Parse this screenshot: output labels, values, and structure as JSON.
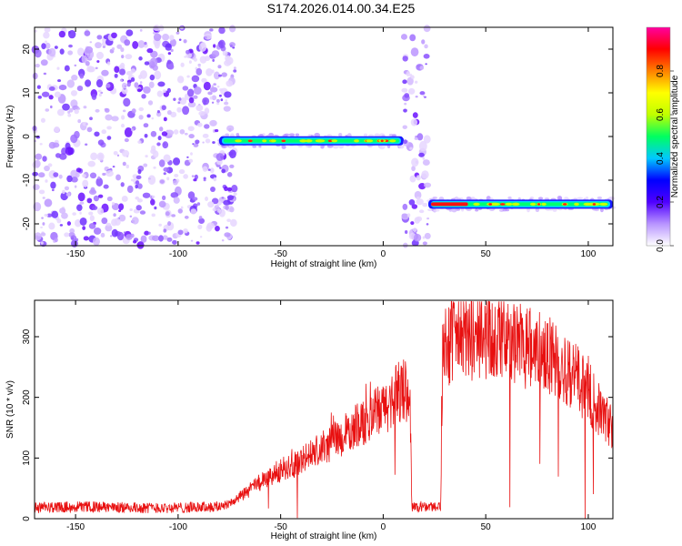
{
  "title": "S174.2026.014.00.34.E25",
  "chart_data": [
    {
      "type": "heatmap",
      "name": "spectrogram",
      "xlabel": "Height of straight line (km)",
      "ylabel": "Frequency (Hz)",
      "xlim": [
        -170,
        112
      ],
      "ylim": [
        -25,
        25
      ],
      "xticks": [
        -150,
        -100,
        -50,
        0,
        50,
        100
      ],
      "yticks": [
        -20,
        -10,
        0,
        10,
        20
      ],
      "segments": [
        {
          "label": "noise",
          "x": [
            -170,
            -72
          ],
          "kind": "noise"
        },
        {
          "label": "trace",
          "x": [
            -80,
            10
          ],
          "freq": -1,
          "kind": "trace"
        },
        {
          "label": "noise",
          "x": [
            10,
            22
          ],
          "kind": "noise"
        },
        {
          "label": "trace",
          "x": [
            22,
            112
          ],
          "freq": -15.5,
          "kind": "trace"
        }
      ],
      "colorbar": {
        "label": "Normalized spectral amplitude",
        "range": [
          0,
          1
        ],
        "ticks": [
          "0.0",
          "0.2",
          "0.4",
          "0.6",
          "0.8"
        ],
        "tick_values": [
          0,
          0.2,
          0.4,
          0.6,
          0.8
        ],
        "colors": [
          "#ffffff",
          "#b894ff",
          "#4f00ff",
          "#0000ff",
          "#00c8ff",
          "#00ff60",
          "#c0ff00",
          "#ffff00",
          "#ff8000",
          "#ff0000",
          "#ff00a0"
        ]
      }
    },
    {
      "type": "line",
      "name": "snr",
      "xlabel": "Height of straight line (km)",
      "ylabel": "SNR (10 * v/v)",
      "xlim": [
        -170,
        112
      ],
      "ylim": [
        0,
        360
      ],
      "xticks": [
        -150,
        -100,
        -50,
        0,
        50,
        100
      ],
      "yticks": [
        0,
        100,
        200,
        300
      ],
      "color": "#e81010",
      "profile": [
        [
          -170,
          18
        ],
        [
          -150,
          20
        ],
        [
          -120,
          18
        ],
        [
          -100,
          18
        ],
        [
          -80,
          20
        ],
        [
          -72,
          30
        ],
        [
          -60,
          60
        ],
        [
          -50,
          80
        ],
        [
          -40,
          95
        ],
        [
          -30,
          115
        ],
        [
          -20,
          135
        ],
        [
          -10,
          160
        ],
        [
          0,
          180
        ],
        [
          8,
          210
        ],
        [
          13,
          210
        ],
        [
          14,
          20
        ],
        [
          28,
          20
        ],
        [
          29,
          290
        ],
        [
          40,
          300
        ],
        [
          60,
          295
        ],
        [
          80,
          270
        ],
        [
          95,
          230
        ],
        [
          105,
          180
        ],
        [
          112,
          150
        ]
      ],
      "noise_amplitude": 0.25
    }
  ],
  "colors": {
    "line": "#e81010",
    "axes": "#000000",
    "background": "#ffffff"
  }
}
